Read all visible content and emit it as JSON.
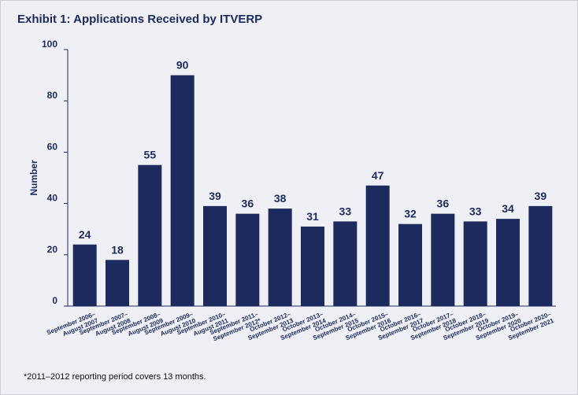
{
  "page": {
    "title": "Exhibit 1: Applications Received by ITVERP",
    "footnote": "*2011–2012 reporting period covers 13 months."
  },
  "chart_data": {
    "type": "bar",
    "title": "Exhibit 1: Applications Received by ITVERP",
    "xlabel": "",
    "ylabel": "Number",
    "ylim": [
      0,
      100
    ],
    "yticks": [
      0,
      20,
      40,
      60,
      80,
      100
    ],
    "grid": false,
    "bar_color": "#1c2a5e",
    "categories": [
      [
        "September 2006–",
        "August 2007"
      ],
      [
        "September 2007–",
        "August 2008"
      ],
      [
        "September 2008–",
        "August 2009"
      ],
      [
        "September 2009–",
        "August 2010"
      ],
      [
        "September 2010–",
        "August 2011"
      ],
      [
        "September 2011–",
        "September 2012*"
      ],
      [
        "October 2012–",
        "September 2013"
      ],
      [
        "October 2013–",
        "September 2014"
      ],
      [
        "October 2014–",
        "September 2015"
      ],
      [
        "October 2015–",
        "September 2016"
      ],
      [
        "October 2016–",
        "September 2017"
      ],
      [
        "October 2017–",
        "September 2018"
      ],
      [
        "October 2018–",
        "September 2019"
      ],
      [
        "October 2019–",
        "September 2020"
      ],
      [
        "October 2020–",
        "September 2021"
      ]
    ],
    "values": [
      24,
      18,
      55,
      90,
      39,
      36,
      38,
      31,
      33,
      47,
      32,
      36,
      33,
      34,
      39
    ]
  }
}
